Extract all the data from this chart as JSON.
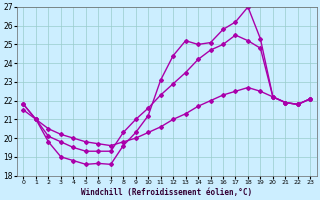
{
  "xlabel": "Windchill (Refroidissement éolien,°C)",
  "xlim": [
    -0.5,
    23.5
  ],
  "ylim": [
    18,
    27
  ],
  "yticks": [
    18,
    19,
    20,
    21,
    22,
    23,
    24,
    25,
    26,
    27
  ],
  "xticks": [
    0,
    1,
    2,
    3,
    4,
    5,
    6,
    7,
    8,
    9,
    10,
    11,
    12,
    13,
    14,
    15,
    16,
    17,
    18,
    19,
    20,
    21,
    22,
    23
  ],
  "background_color": "#cceeff",
  "grid_color": "#99cccc",
  "line_color": "#aa00aa",
  "line_width": 1.0,
  "marker": "D",
  "marker_size": 2.0,
  "lines": [
    {
      "x": [
        0,
        1,
        2,
        3,
        4,
        5,
        6,
        7,
        8,
        9,
        10,
        11,
        12,
        13,
        14,
        15,
        16,
        17,
        18,
        19,
        20,
        21,
        22,
        23
      ],
      "y": [
        21.8,
        21.0,
        19.8,
        19.0,
        18.8,
        18.6,
        18.65,
        18.6,
        19.6,
        20.3,
        21.2,
        23.1,
        24.4,
        25.2,
        25.0,
        25.1,
        25.8,
        26.2,
        27.0,
        25.3,
        22.2,
        21.9,
        21.8,
        22.1
      ]
    },
    {
      "x": [
        0,
        1,
        2,
        3,
        4,
        5,
        6,
        7,
        8,
        9,
        10,
        11,
        12,
        13,
        14,
        15,
        16,
        17,
        18,
        19,
        20,
        21,
        22,
        23
      ],
      "y": [
        21.8,
        21.0,
        20.1,
        19.8,
        19.5,
        19.3,
        19.3,
        19.3,
        20.3,
        21.0,
        21.6,
        22.3,
        22.9,
        23.5,
        24.2,
        24.7,
        25.0,
        25.5,
        25.2,
        24.8,
        22.2,
        21.9,
        21.8,
        22.1
      ]
    },
    {
      "x": [
        0,
        1,
        2,
        3,
        4,
        5,
        6,
        7,
        8,
        9,
        10,
        11,
        12,
        13,
        14,
        15,
        16,
        17,
        18,
        19,
        20,
        21,
        22,
        23
      ],
      "y": [
        21.5,
        21.0,
        20.5,
        20.2,
        20.0,
        19.8,
        19.7,
        19.6,
        19.8,
        20.0,
        20.3,
        20.6,
        21.0,
        21.3,
        21.7,
        22.0,
        22.3,
        22.5,
        22.7,
        22.5,
        22.2,
        21.9,
        21.8,
        22.1
      ]
    }
  ]
}
